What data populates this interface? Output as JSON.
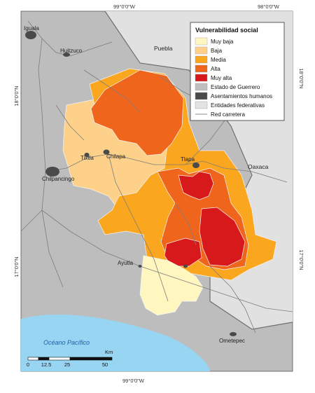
{
  "map": {
    "coords": {
      "top_left": "99°0'0\"W",
      "top_right": "98°0'0\"W",
      "bottom": "99°0'0\"W",
      "left_upper": "18°0'0\"N",
      "right_upper": "18°0'0\"N",
      "left_lower": "17°0'0\"N",
      "right_lower": "17°0'0\"N"
    },
    "places": {
      "iguala": "Iguala",
      "huitzuco": "Huitzuco",
      "tixtla": "Tixtla",
      "chilapa": "Chilapa",
      "chilpancingo": "Chilpancingo",
      "tlapa": "Tlapa",
      "ayutla": "Ayutla",
      "ometepec": "Ometepec"
    },
    "regions": {
      "puebla": "Puebla",
      "oaxaca": "Oaxaca"
    },
    "ocean": "Océano Pacífico"
  },
  "legend": {
    "title": "Vulnerabilidad social",
    "items": [
      {
        "label": "Muy baja",
        "color": "#fff7bf"
      },
      {
        "label": "Baja",
        "color": "#fdd18a"
      },
      {
        "label": "Media",
        "color": "#fba61f"
      },
      {
        "label": "Alta",
        "color": "#f0651c"
      },
      {
        "label": "Muy alta",
        "color": "#d7191c"
      },
      {
        "label": "Estado de Guerrero",
        "color": "#bfbfbf"
      },
      {
        "label": "Asentamientos humanos",
        "color": "#4a4a4a"
      },
      {
        "label": "Entidades federativas",
        "color": "#e3e3e3"
      },
      {
        "label": "Red carretera",
        "color": "#888888"
      }
    ]
  },
  "scale": {
    "ticks": [
      "0",
      "12.5",
      "25",
      "50"
    ],
    "unit": "Km"
  }
}
